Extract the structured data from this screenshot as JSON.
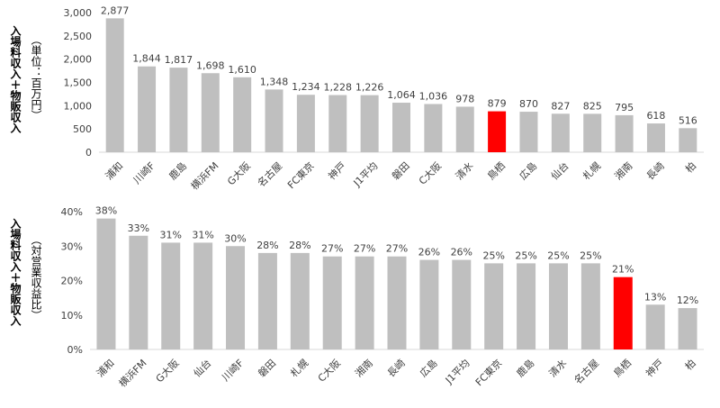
{
  "colors": {
    "bar": "#bfbfbf",
    "highlight": "#ff0000",
    "text": "#404040"
  },
  "chart_data": [
    {
      "type": "bar",
      "title": "",
      "ylabel_main": "入場料収入＋物販収入",
      "ylabel_sub": "（単位：百万円）",
      "ylim": [
        0,
        3000
      ],
      "yticks": [
        "0",
        "500",
        "1,000",
        "1,500",
        "2,000",
        "2,500",
        "3,000"
      ],
      "categories": [
        "浦和",
        "川崎F",
        "鹿島",
        "横浜FM",
        "G大阪",
        "名古屋",
        "FC東京",
        "神戸",
        "J1平均",
        "磐田",
        "C大阪",
        "清水",
        "鳥栖",
        "広島",
        "仙台",
        "札幌",
        "湘南",
        "長崎",
        "柏"
      ],
      "values": [
        2877,
        1844,
        1817,
        1698,
        1610,
        1348,
        1234,
        1228,
        1226,
        1064,
        1036,
        978,
        879,
        870,
        827,
        825,
        795,
        618,
        516
      ],
      "value_labels": [
        "2,877",
        "1,844",
        "1,817",
        "1,698",
        "1,610",
        "1,348",
        "1,234",
        "1,228",
        "1,226",
        "1,064",
        "1,036",
        "978",
        "879",
        "870",
        "827",
        "825",
        "795",
        "618",
        "516"
      ],
      "highlight_index": 12
    },
    {
      "type": "bar",
      "title": "",
      "ylabel_main": "入場料収入＋物販収入",
      "ylabel_sub": "（対営業収益比）",
      "ylim": [
        0,
        40
      ],
      "yticks": [
        "0%",
        "10%",
        "20%",
        "30%",
        "40%"
      ],
      "categories": [
        "浦和",
        "横浜FM",
        "G大阪",
        "仙台",
        "川崎F",
        "磐田",
        "札幌",
        "C大阪",
        "湘南",
        "長崎",
        "広島",
        "J1平均",
        "FC東京",
        "鹿島",
        "清水",
        "名古屋",
        "鳥栖",
        "神戸",
        "柏"
      ],
      "values": [
        38,
        33,
        31,
        31,
        30,
        28,
        28,
        27,
        27,
        27,
        26,
        26,
        25,
        25,
        25,
        25,
        21,
        13,
        12
      ],
      "value_labels": [
        "38%",
        "33%",
        "31%",
        "31%",
        "30%",
        "28%",
        "28%",
        "27%",
        "27%",
        "27%",
        "26%",
        "26%",
        "25%",
        "25%",
        "25%",
        "25%",
        "21%",
        "13%",
        "12%"
      ],
      "highlight_index": 16
    }
  ]
}
